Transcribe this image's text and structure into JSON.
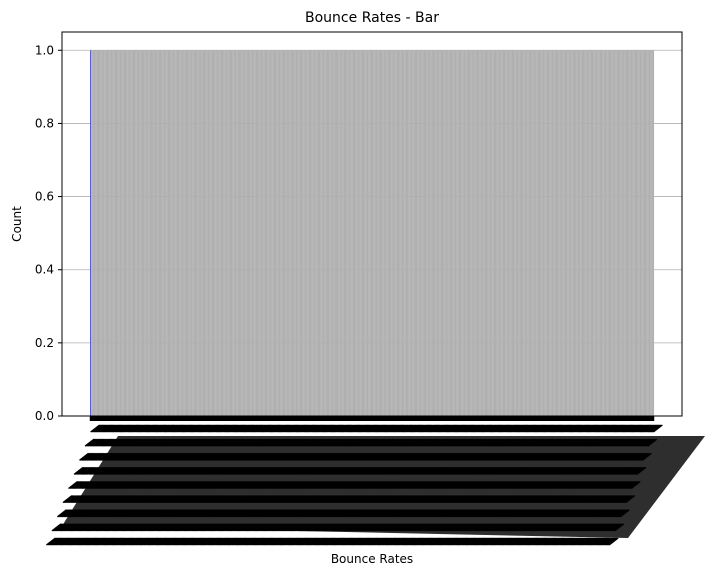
{
  "chart_data": {
    "type": "bar",
    "title": "Bounce Rates - Bar",
    "xlabel": "Bounce Rates",
    "ylabel": "Count",
    "ylim": [
      0,
      1.05
    ],
    "y_ticks": [
      "0.0",
      "0.2",
      "0.4",
      "0.6",
      "0.8",
      "1.0"
    ],
    "y_tick_values": [
      0,
      0.2,
      0.4,
      0.6,
      0.8,
      1.0
    ],
    "grid": "y",
    "bar_count": 500,
    "bar_value": 1,
    "colors": {
      "bar_fill": "#b0b0b0",
      "bar_edge": "#5b5bd6",
      "grid": "#b0b0b0",
      "axes": "#000000"
    }
  }
}
